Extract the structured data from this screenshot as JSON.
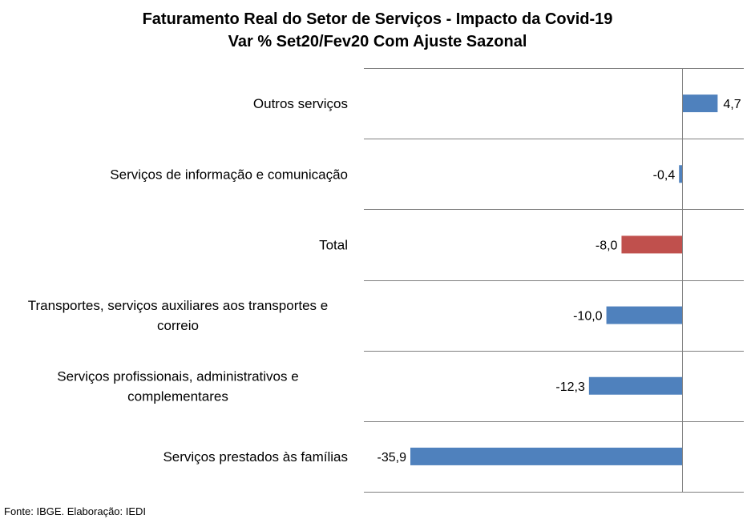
{
  "title_line1": "Faturamento Real do Setor de Serviços - Impacto da Covid-19",
  "title_line2": "Var % Set20/Fev20 Com Ajuste Sazonal",
  "source": "Fonte: IBGE. Elaboração: IEDI",
  "chart_data": {
    "type": "bar",
    "orientation": "horizontal",
    "title": "Faturamento Real do Setor de Serviços - Impacto da Covid-19",
    "subtitle": "Var % Set20/Fev20 Com Ajuste Sazonal",
    "categories": [
      "Outros serviços",
      "Serviços de informação e comunicação",
      "Total",
      "Transportes, serviços auxiliares aos transportes e correio",
      "Serviços profissionais, administrativos e complementares",
      "Serviços prestados às famílias"
    ],
    "category_lines": [
      [
        "Outros serviços"
      ],
      [
        "Serviços de informação e comunicação"
      ],
      [
        "Total"
      ],
      [
        "Transportes, serviços auxiliares aos transportes e",
        "correio"
      ],
      [
        "Serviços profissionais, administrativos e",
        "complementares"
      ],
      [
        "Serviços prestados às famílias"
      ]
    ],
    "values": [
      4.7,
      -0.4,
      -8.0,
      -10.0,
      -12.3,
      -35.9
    ],
    "value_labels": [
      "4,7",
      "-0,4",
      "-8,0",
      "-10,0",
      "-12,3",
      "-35,9"
    ],
    "bar_colors": [
      "#4f81bd",
      "#4f81bd",
      "#c0504d",
      "#4f81bd",
      "#4f81bd",
      "#4f81bd"
    ],
    "xlim": [
      -40,
      8
    ],
    "grid": "horizontal separators between categories",
    "legend": "none"
  }
}
